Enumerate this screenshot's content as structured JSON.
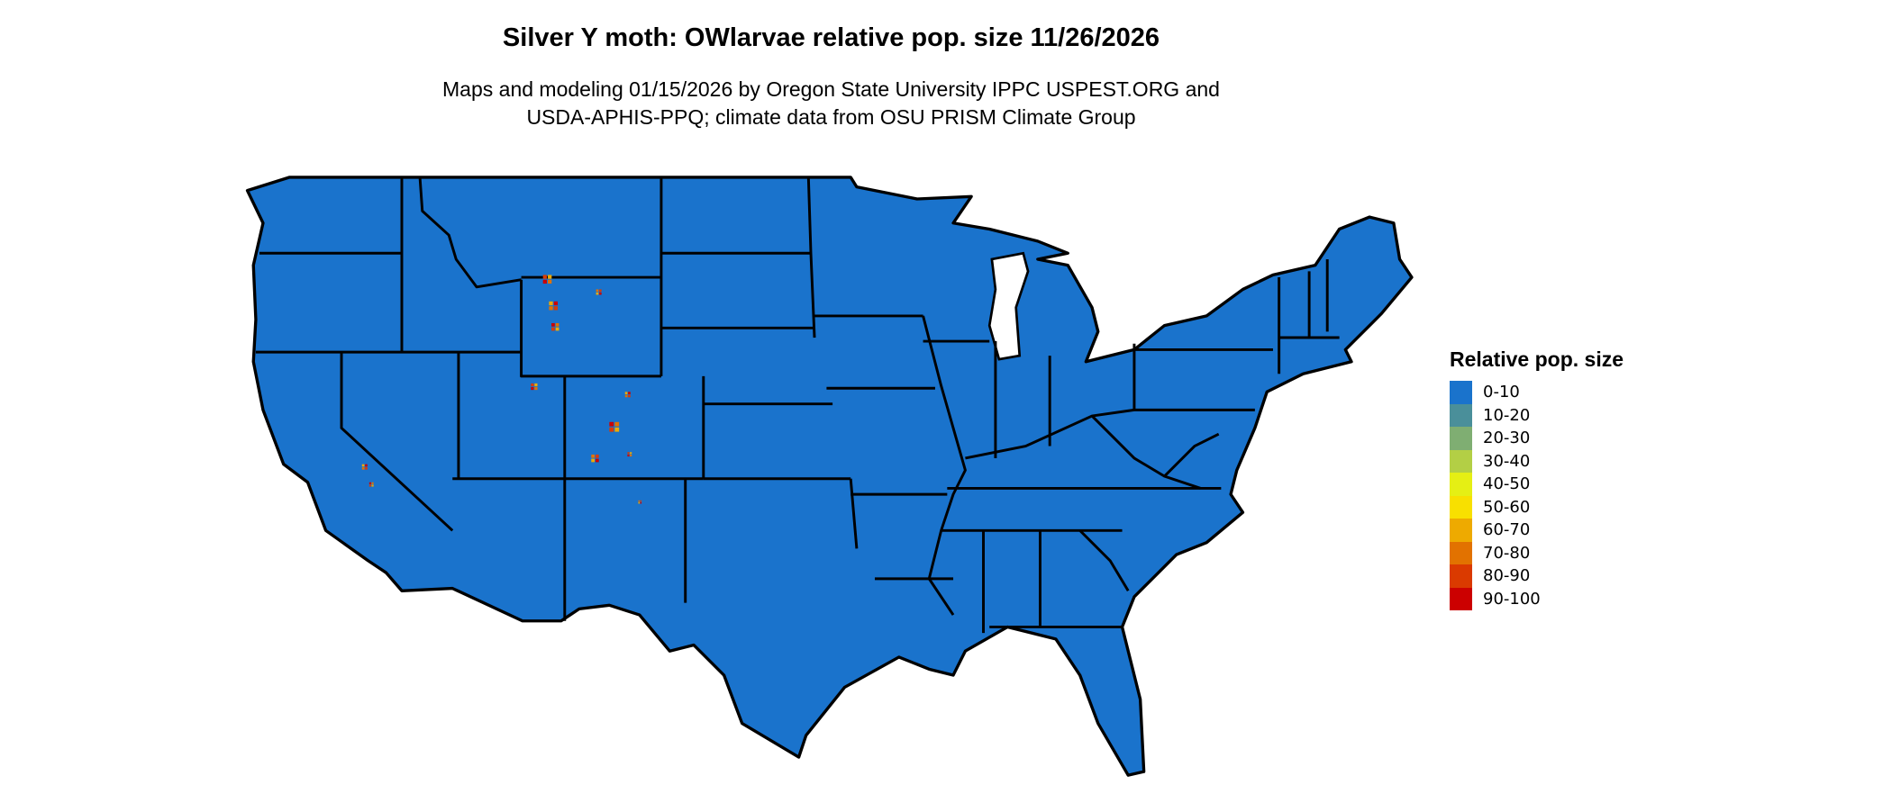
{
  "title": "Silver Y moth: OWlarvae relative pop. size 11/26/2026",
  "subtitle": [
    "Maps and modeling 01/15/2026 by Oregon State University IPPC USPEST.ORG and",
    "USDA-APHIS-PPQ; climate data from OSU PRISM Climate Group"
  ],
  "map": {
    "region": "Contiguous United States",
    "dominant_class": "0-10",
    "fill_color": "#1a73cc",
    "border_color": "#000000"
  },
  "legend": {
    "title": "Relative pop. size",
    "items": [
      {
        "label": "0-10",
        "color": "#1a73cc"
      },
      {
        "label": "10-20",
        "color": "#4a8f9a"
      },
      {
        "label": "20-30",
        "color": "#7fae72"
      },
      {
        "label": "30-40",
        "color": "#b3cf45"
      },
      {
        "label": "40-50",
        "color": "#e5ef14"
      },
      {
        "label": "50-60",
        "color": "#f8e000"
      },
      {
        "label": "60-70",
        "color": "#eeaa00"
      },
      {
        "label": "70-80",
        "color": "#e27200"
      },
      {
        "label": "80-90",
        "color": "#da3a00"
      },
      {
        "label": "90-100",
        "color": "#cc0000"
      }
    ]
  }
}
